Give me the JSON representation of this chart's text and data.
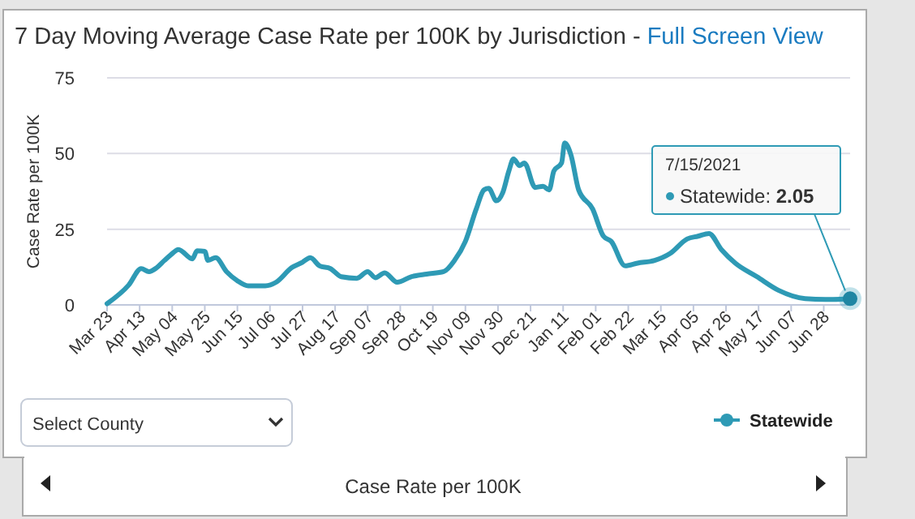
{
  "chart_data": {
    "type": "line",
    "title": "7 Day Moving Average Case Rate per 100K by Jurisdiction -",
    "ylabel": "Case Rate per 100K",
    "annotations": [
      "Full Screen View",
      "Select County",
      "Case Rate per 100K",
      "7/15/2021",
      {
        "text": "Statewide: 2.05",
        "x": "2021-07-15",
        "y": 2.05
      }
    ],
    "x": [
      "2020-03-23",
      "2020-04-06",
      "2020-04-14",
      "2020-04-19",
      "2020-04-24",
      "2020-04-29",
      "2020-05-03",
      "2020-05-08",
      "2020-05-17",
      "2020-05-20",
      "2020-05-25",
      "2020-05-27",
      "2020-06-01",
      "2020-06-08",
      "2020-06-15",
      "2020-06-22",
      "2020-07-03",
      "2020-07-10",
      "2020-07-20",
      "2020-07-27",
      "2020-08-01",
      "2020-08-07",
      "2020-08-14",
      "2020-08-21",
      "2020-08-31",
      "2020-09-07",
      "2020-09-12",
      "2020-09-18",
      "2020-09-26",
      "2020-10-05",
      "2020-10-15",
      "2020-10-26",
      "2020-11-02",
      "2020-11-09",
      "2020-11-16",
      "2020-11-21",
      "2020-11-24",
      "2020-11-29",
      "2020-12-03",
      "2020-12-07",
      "2020-12-10",
      "2020-12-14",
      "2020-12-17",
      "2020-12-24",
      "2020-12-29",
      "2021-01-02",
      "2021-01-05",
      "2021-01-10",
      "2021-01-12",
      "2021-01-16",
      "2021-01-21",
      "2021-01-30",
      "2021-02-06",
      "2021-02-11",
      "2021-02-20",
      "2021-02-28",
      "2021-03-11",
      "2021-03-21",
      "2021-04-01",
      "2021-04-08",
      "2021-04-15",
      "2021-04-23",
      "2021-05-02",
      "2021-05-16",
      "2021-05-30",
      "2021-06-16",
      "2021-07-04",
      "2021-07-15"
    ],
    "series": [
      {
        "name": "Statewide",
        "color": "#2e9ab5",
        "values": [
          0.4,
          6.6,
          12,
          11,
          12.3,
          14.7,
          16.5,
          18.3,
          15.2,
          17.9,
          17.7,
          14.7,
          15.6,
          11,
          8,
          6.3,
          6.3,
          7.5,
          12.3,
          14.1,
          15.6,
          12.9,
          12,
          9.3,
          8.8,
          11,
          9,
          10.6,
          7.5,
          9.3,
          10.2,
          11,
          14.7,
          21,
          31.7,
          38,
          38.5,
          34.4,
          37,
          44.2,
          48.2,
          46,
          46.9,
          38.8,
          39.2,
          38,
          44.2,
          46.9,
          53.5,
          49.6,
          38,
          31.7,
          22.7,
          21,
          12.9,
          13.8,
          14.7,
          17,
          21.8,
          22.7,
          23.6,
          18.3,
          13.8,
          9.3,
          4.8,
          2.1,
          1.8,
          2.05
        ]
      }
    ],
    "xlim": [
      "2020-03-23",
      "2021-07-15"
    ],
    "xticks": [
      {
        "value": "2020-03-23",
        "label": "Mar 23"
      },
      {
        "value": "2020-04-13",
        "label": "Apr 13"
      },
      {
        "value": "2020-05-04",
        "label": "May 04"
      },
      {
        "value": "2020-05-25",
        "label": "May 25"
      },
      {
        "value": "2020-06-15",
        "label": "Jun 15"
      },
      {
        "value": "2020-07-06",
        "label": "Jul 06"
      },
      {
        "value": "2020-07-27",
        "label": "Jul 27"
      },
      {
        "value": "2020-08-17",
        "label": "Aug 17"
      },
      {
        "value": "2020-09-07",
        "label": "Sep 07"
      },
      {
        "value": "2020-09-28",
        "label": "Sep 28"
      },
      {
        "value": "2020-10-19",
        "label": "Oct 19"
      },
      {
        "value": "2020-11-09",
        "label": "Nov 09"
      },
      {
        "value": "2020-11-30",
        "label": "Nov 30"
      },
      {
        "value": "2020-12-21",
        "label": "Dec 21"
      },
      {
        "value": "2021-01-11",
        "label": "Jan 11"
      },
      {
        "value": "2021-02-01",
        "label": "Feb 01"
      },
      {
        "value": "2021-02-22",
        "label": "Feb 22"
      },
      {
        "value": "2021-03-15",
        "label": "Mar 15"
      },
      {
        "value": "2021-04-05",
        "label": "Apr 05"
      },
      {
        "value": "2021-04-26",
        "label": "Apr 26"
      },
      {
        "value": "2021-05-17",
        "label": "May 17"
      },
      {
        "value": "2021-06-07",
        "label": "Jun 07"
      },
      {
        "value": "2021-06-28",
        "label": "Jun 28"
      }
    ],
    "ylim": [
      0,
      75
    ],
    "yticks": [
      0,
      25,
      50,
      75
    ],
    "grid": "y",
    "legend": "bottom right",
    "marker": "none",
    "line_style": "solid"
  }
}
